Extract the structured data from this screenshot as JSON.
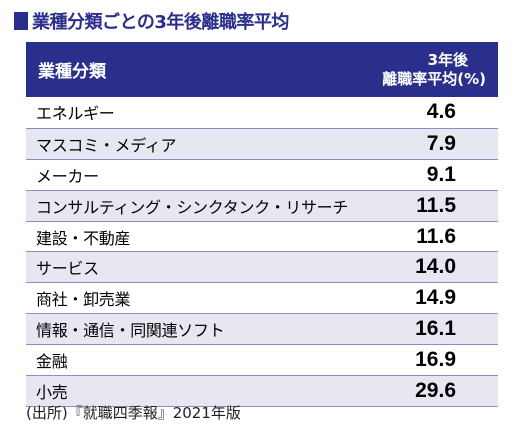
{
  "title": "業種分類ごとの3年後離職率平均",
  "colors": {
    "accent": "#2b2f8c",
    "row_shade": "#e6e7f1",
    "divider": "#8a8fc0"
  },
  "header": {
    "category": "業種分類",
    "value_line1": "3年後",
    "value_line2": "離職率平均(%)"
  },
  "source": "(出所)『就職四季報』2021年版",
  "chart_data": {
    "type": "table",
    "title": "業種分類ごとの3年後離職率平均",
    "columns": [
      "業種分類",
      "3年後離職率平均(%)"
    ],
    "rows": [
      {
        "category": "エネルギー",
        "value": "4.6"
      },
      {
        "category": "マスコミ・メディア",
        "value": "7.9"
      },
      {
        "category": "メーカー",
        "value": "9.1"
      },
      {
        "category": "コンサルティング・シンクタンク・リサーチ",
        "value": "11.5"
      },
      {
        "category": "建設・不動産",
        "value": "11.6"
      },
      {
        "category": "サービス",
        "value": "14.0"
      },
      {
        "category": "商社・卸売業",
        "value": "14.9"
      },
      {
        "category": "情報・通信・同関連ソフト",
        "value": "16.1"
      },
      {
        "category": "金融",
        "value": "16.9"
      },
      {
        "category": "小売",
        "value": "29.6"
      }
    ]
  }
}
